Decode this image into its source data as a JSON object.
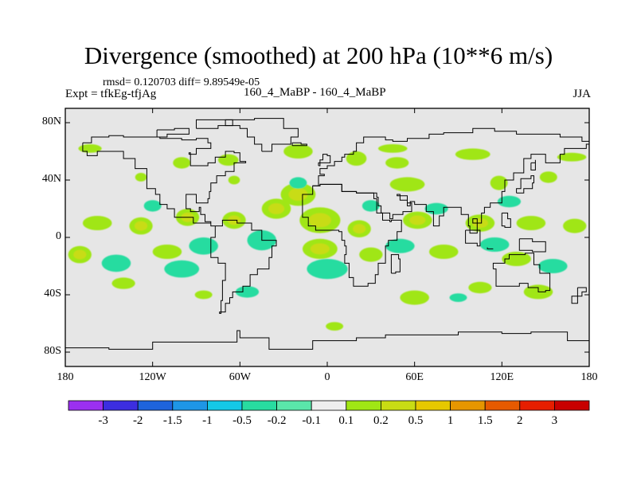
{
  "title": "Divergence (smoothed) at 200 hPa (10**6 m/s)",
  "stats": "rmsd= 0.120703 diff= 9.89549e-05",
  "expt": "Expt = tfkEg-tfjAg",
  "center_label": "160_4_MaBP - 160_4_MaBP",
  "season": "JJA",
  "map": {
    "lat_ticks": [
      "80N",
      "40N",
      "0",
      "40S",
      "80S"
    ],
    "lon_ticks": [
      "180",
      "120W",
      "60W",
      "0",
      "60E",
      "120E",
      "180"
    ],
    "lat_values": [
      80,
      40,
      0,
      -40,
      -80
    ],
    "lon_values": [
      -180,
      -120,
      -60,
      0,
      60,
      120,
      180
    ],
    "lat_range": [
      -90,
      90
    ],
    "lon_range": [
      -180,
      180
    ],
    "background_color": "#e6e6e6"
  },
  "colorbar": {
    "labels": [
      "-3",
      "-2",
      "-1.5",
      "-1",
      "-0.5",
      "-0.2",
      "-0.1",
      "0.1",
      "0.2",
      "0.5",
      "1",
      "1.5",
      "2",
      "3"
    ],
    "colors": [
      "#9b30f0",
      "#3c2ee0",
      "#1e64dc",
      "#1e96e6",
      "#14c8e6",
      "#28dca0",
      "#5ae6aa",
      "#eeeeee",
      "#a0e614",
      "#c8dc14",
      "#e6c800",
      "#e69600",
      "#e65a00",
      "#e61e00",
      "#c80000"
    ]
  },
  "divergence_blobs": [
    {
      "lon": -163,
      "lat": 62,
      "rx": 8,
      "ry": 3,
      "v": 0.3
    },
    {
      "lon": -100,
      "lat": 52,
      "rx": 6,
      "ry": 4,
      "v": 0.3
    },
    {
      "lon": -68,
      "lat": 54,
      "rx": 7,
      "ry": 4,
      "v": 0.3
    },
    {
      "lon": -20,
      "lat": 60,
      "rx": 10,
      "ry": 5,
      "v": 0.3
    },
    {
      "lon": 20,
      "lat": 55,
      "rx": 7,
      "ry": 5,
      "v": 0.3
    },
    {
      "lon": 48,
      "lat": 52,
      "rx": 8,
      "ry": 4,
      "v": 0.3
    },
    {
      "lon": 100,
      "lat": 58,
      "rx": 12,
      "ry": 4,
      "v": 0.3
    },
    {
      "lon": 168,
      "lat": 56,
      "rx": 10,
      "ry": 3,
      "v": 0.3
    },
    {
      "lon": 45,
      "lat": 62,
      "rx": 10,
      "ry": 3,
      "v": 0.3
    },
    {
      "lon": -128,
      "lat": 42,
      "rx": 4,
      "ry": 3,
      "v": 0.3
    },
    {
      "lon": -64,
      "lat": 40,
      "rx": 4,
      "ry": 3,
      "v": 0.3
    },
    {
      "lon": -20,
      "lat": 30,
      "rx": 12,
      "ry": 8,
      "v": 0.6
    },
    {
      "lon": 55,
      "lat": 37,
      "rx": 12,
      "ry": 5,
      "v": 0.3
    },
    {
      "lon": 118,
      "lat": 38,
      "rx": 6,
      "ry": 5,
      "v": 0.3
    },
    {
      "lon": 152,
      "lat": 42,
      "rx": 6,
      "ry": 4,
      "v": 0.3
    },
    {
      "lon": -158,
      "lat": 10,
      "rx": 10,
      "ry": 5,
      "v": 0.3
    },
    {
      "lon": -128,
      "lat": 8,
      "rx": 8,
      "ry": 6,
      "v": 0.6
    },
    {
      "lon": -96,
      "lat": 14,
      "rx": 8,
      "ry": 6,
      "v": 0.6
    },
    {
      "lon": -64,
      "lat": 12,
      "rx": 8,
      "ry": 6,
      "v": 0.6
    },
    {
      "lon": -35,
      "lat": 20,
      "rx": 10,
      "ry": 7,
      "v": 0.6
    },
    {
      "lon": -5,
      "lat": 12,
      "rx": 14,
      "ry": 9,
      "v": 0.6
    },
    {
      "lon": 22,
      "lat": 6,
      "rx": 8,
      "ry": 6,
      "v": 0.6
    },
    {
      "lon": 62,
      "lat": 12,
      "rx": 10,
      "ry": 6,
      "v": 0.6
    },
    {
      "lon": 105,
      "lat": 10,
      "rx": 10,
      "ry": 6,
      "v": 0.6
    },
    {
      "lon": 140,
      "lat": 10,
      "rx": 10,
      "ry": 5,
      "v": 0.3
    },
    {
      "lon": 170,
      "lat": 8,
      "rx": 8,
      "ry": 5,
      "v": 0.3
    },
    {
      "lon": -5,
      "lat": -8,
      "rx": 12,
      "ry": 7,
      "v": 0.6
    },
    {
      "lon": 30,
      "lat": -12,
      "rx": 8,
      "ry": 5,
      "v": 0.3
    },
    {
      "lon": 80,
      "lat": -10,
      "rx": 10,
      "ry": 5,
      "v": 0.3
    },
    {
      "lon": 130,
      "lat": -15,
      "rx": 10,
      "ry": 5,
      "v": 0.3
    },
    {
      "lon": -170,
      "lat": -12,
      "rx": 8,
      "ry": 6,
      "v": 0.6
    },
    {
      "lon": -110,
      "lat": -10,
      "rx": 10,
      "ry": 5,
      "v": 0.3
    },
    {
      "lon": 60,
      "lat": -42,
      "rx": 10,
      "ry": 5,
      "v": 0.3
    },
    {
      "lon": 105,
      "lat": -35,
      "rx": 8,
      "ry": 4,
      "v": 0.3
    },
    {
      "lon": 145,
      "lat": -38,
      "rx": 10,
      "ry": 5,
      "v": 0.3
    },
    {
      "lon": 5,
      "lat": -62,
      "rx": 6,
      "ry": 3,
      "v": 0.3
    },
    {
      "lon": -85,
      "lat": -40,
      "rx": 6,
      "ry": 3,
      "v": 0.3
    },
    {
      "lon": -140,
      "lat": -32,
      "rx": 8,
      "ry": 4,
      "v": 0.3
    },
    {
      "lon": -45,
      "lat": -2,
      "rx": 10,
      "ry": 7,
      "v": -0.3
    },
    {
      "lon": -85,
      "lat": -6,
      "rx": 10,
      "ry": 6,
      "v": -0.3
    },
    {
      "lon": -145,
      "lat": -18,
      "rx": 10,
      "ry": 6,
      "v": -0.3
    },
    {
      "lon": -100,
      "lat": -22,
      "rx": 12,
      "ry": 6,
      "v": -0.3
    },
    {
      "lon": 0,
      "lat": -22,
      "rx": 14,
      "ry": 7,
      "v": -0.3
    },
    {
      "lon": 50,
      "lat": -6,
      "rx": 10,
      "ry": 5,
      "v": -0.3
    },
    {
      "lon": 115,
      "lat": -5,
      "rx": 10,
      "ry": 5,
      "v": -0.3
    },
    {
      "lon": 155,
      "lat": -20,
      "rx": 10,
      "ry": 5,
      "v": -0.3
    },
    {
      "lon": -120,
      "lat": 22,
      "rx": 6,
      "ry": 4,
      "v": -0.3
    },
    {
      "lon": -20,
      "lat": 38,
      "rx": 6,
      "ry": 4,
      "v": -0.3
    },
    {
      "lon": 30,
      "lat": 22,
      "rx": 6,
      "ry": 4,
      "v": -0.3
    },
    {
      "lon": 75,
      "lat": 20,
      "rx": 8,
      "ry": 4,
      "v": -0.3
    },
    {
      "lon": 125,
      "lat": 25,
      "rx": 8,
      "ry": 4,
      "v": -0.3
    },
    {
      "lon": -55,
      "lat": -38,
      "rx": 8,
      "ry": 4,
      "v": -0.3
    },
    {
      "lon": 90,
      "lat": -42,
      "rx": 6,
      "ry": 3,
      "v": -0.3
    }
  ],
  "coastlines": [
    [
      [
        -168,
        66
      ],
      [
        -162,
        70
      ],
      [
        -150,
        71
      ],
      [
        -140,
        70
      ],
      [
        -128,
        70
      ],
      [
        -115,
        69
      ],
      [
        -100,
        68
      ],
      [
        -90,
        69
      ],
      [
        -82,
        66
      ],
      [
        -80,
        62
      ],
      [
        -90,
        58
      ],
      [
        -95,
        59
      ],
      [
        -94,
        50
      ],
      [
        -82,
        52
      ],
      [
        -77,
        56
      ],
      [
        -70,
        60
      ],
      [
        -64,
        59
      ],
      [
        -60,
        53
      ],
      [
        -56,
        52
      ],
      [
        -64,
        46
      ],
      [
        -70,
        43
      ],
      [
        -76,
        38
      ],
      [
        -80,
        32
      ],
      [
        -81,
        27
      ],
      [
        -82,
        24
      ],
      [
        -90,
        30
      ],
      [
        -97,
        27
      ],
      [
        -97,
        20
      ],
      [
        -94,
        18
      ],
      [
        -88,
        21
      ],
      [
        -87,
        16
      ],
      [
        -84,
        11
      ],
      [
        -80,
        8
      ],
      [
        -77,
        8
      ],
      [
        -80,
        10
      ],
      [
        -85,
        10
      ],
      [
        -92,
        14
      ],
      [
        -105,
        20
      ],
      [
        -110,
        23
      ],
      [
        -115,
        30
      ],
      [
        -118,
        34
      ],
      [
        -124,
        40
      ],
      [
        -124,
        48
      ],
      [
        -132,
        55
      ],
      [
        -140,
        60
      ],
      [
        -150,
        60
      ],
      [
        -158,
        57
      ],
      [
        -165,
        60
      ],
      [
        -168,
        66
      ]
    ],
    [
      [
        -77,
        8
      ],
      [
        -72,
        12
      ],
      [
        -62,
        10
      ],
      [
        -52,
        5
      ],
      [
        -45,
        -2
      ],
      [
        -35,
        -6
      ],
      [
        -38,
        -14
      ],
      [
        -40,
        -22
      ],
      [
        -48,
        -26
      ],
      [
        -53,
        -34
      ],
      [
        -58,
        -38
      ],
      [
        -65,
        -42
      ],
      [
        -67,
        -46
      ],
      [
        -70,
        -52
      ],
      [
        -74,
        -53
      ],
      [
        -73,
        -44
      ],
      [
        -72,
        -30
      ],
      [
        -70,
        -18
      ],
      [
        -75,
        -14
      ],
      [
        -80,
        -6
      ],
      [
        -80,
        0
      ],
      [
        -77,
        8
      ]
    ],
    [
      [
        -10,
        36
      ],
      [
        -6,
        43
      ],
      [
        -2,
        44
      ],
      [
        -5,
        48
      ],
      [
        0,
        50
      ],
      [
        5,
        53
      ],
      [
        10,
        56
      ],
      [
        12,
        58
      ],
      [
        18,
        60
      ],
      [
        20,
        66
      ],
      [
        25,
        70
      ],
      [
        40,
        68
      ],
      [
        45,
        67
      ],
      [
        55,
        69
      ],
      [
        70,
        72
      ],
      [
        80,
        73
      ],
      [
        100,
        76
      ],
      [
        115,
        74
      ],
      [
        130,
        72
      ],
      [
        145,
        72
      ],
      [
        160,
        70
      ],
      [
        175,
        67
      ],
      [
        180,
        65
      ],
      [
        178,
        62
      ],
      [
        163,
        58
      ],
      [
        160,
        52
      ],
      [
        150,
        58
      ],
      [
        140,
        55
      ],
      [
        135,
        45
      ],
      [
        128,
        40
      ],
      [
        122,
        38
      ],
      [
        122,
        32
      ],
      [
        120,
        24
      ],
      [
        112,
        21
      ],
      [
        108,
        17
      ],
      [
        106,
        10
      ],
      [
        100,
        13
      ],
      [
        103,
        3
      ],
      [
        98,
        8
      ],
      [
        97,
        16
      ],
      [
        92,
        21
      ],
      [
        87,
        21
      ],
      [
        80,
        15
      ],
      [
        77,
        8
      ],
      [
        73,
        18
      ],
      [
        68,
        23
      ],
      [
        60,
        25
      ],
      [
        57,
        22
      ],
      [
        55,
        26
      ],
      [
        50,
        30
      ],
      [
        48,
        29
      ],
      [
        55,
        24
      ],
      [
        58,
        18
      ],
      [
        52,
        16
      ],
      [
        45,
        13
      ],
      [
        43,
        17
      ],
      [
        37,
        22
      ],
      [
        35,
        28
      ],
      [
        34,
        31
      ],
      [
        30,
        31
      ],
      [
        20,
        32
      ],
      [
        10,
        37
      ],
      [
        -5,
        36
      ],
      [
        -10,
        36
      ]
    ],
    [
      [
        -17,
        21
      ],
      [
        -17,
        14
      ],
      [
        -13,
        8
      ],
      [
        -8,
        5
      ],
      [
        0,
        5
      ],
      [
        8,
        4
      ],
      [
        10,
        -2
      ],
      [
        12,
        -6
      ],
      [
        13,
        -12
      ],
      [
        12,
        -18
      ],
      [
        15,
        -28
      ],
      [
        18,
        -34
      ],
      [
        23,
        -34
      ],
      [
        28,
        -32
      ],
      [
        33,
        -26
      ],
      [
        35,
        -18
      ],
      [
        40,
        -14
      ],
      [
        40,
        -6
      ],
      [
        42,
        -2
      ],
      [
        48,
        4
      ],
      [
        51,
        12
      ],
      [
        44,
        11
      ],
      [
        43,
        12
      ],
      [
        38,
        17
      ],
      [
        34,
        27
      ],
      [
        32,
        31
      ],
      [
        20,
        32
      ],
      [
        10,
        37
      ],
      [
        -5,
        36
      ],
      [
        -10,
        30
      ],
      [
        -17,
        21
      ]
    ],
    [
      [
        114,
        -22
      ],
      [
        116,
        -34
      ],
      [
        123,
        -34
      ],
      [
        132,
        -32
      ],
      [
        138,
        -35
      ],
      [
        145,
        -38
      ],
      [
        150,
        -37
      ],
      [
        153,
        -30
      ],
      [
        153,
        -25
      ],
      [
        146,
        -19
      ],
      [
        142,
        -11
      ],
      [
        136,
        -12
      ],
      [
        130,
        -12
      ],
      [
        125,
        -15
      ],
      [
        122,
        -18
      ],
      [
        114,
        -22
      ]
    ],
    [
      [
        -45,
        60
      ],
      [
        -38,
        65
      ],
      [
        -25,
        70
      ],
      [
        -20,
        76
      ],
      [
        -30,
        83
      ],
      [
        -50,
        82
      ],
      [
        -62,
        82
      ],
      [
        -70,
        78
      ],
      [
        -60,
        76
      ],
      [
        -55,
        70
      ],
      [
        -50,
        65
      ],
      [
        -45,
        60
      ]
    ],
    [
      [
        44,
        -25
      ],
      [
        47,
        -24
      ],
      [
        50,
        -15
      ],
      [
        49,
        -12
      ],
      [
        44,
        -17
      ],
      [
        44,
        -25
      ]
    ],
    [
      [
        -6,
        50
      ],
      [
        -5,
        54
      ],
      [
        -3,
        58
      ],
      [
        0,
        57
      ],
      [
        2,
        52
      ],
      [
        -6,
        50
      ]
    ],
    [
      [
        -24,
        64
      ],
      [
        -14,
        65
      ],
      [
        -18,
        66
      ],
      [
        -24,
        64
      ]
    ],
    [
      [
        130,
        31
      ],
      [
        135,
        34
      ],
      [
        141,
        38
      ],
      [
        142,
        43
      ],
      [
        140,
        41
      ],
      [
        133,
        34
      ],
      [
        130,
        31
      ]
    ],
    [
      [
        95,
        5
      ],
      [
        105,
        -6
      ],
      [
        103,
        -4
      ],
      [
        95,
        5
      ]
    ],
    [
      [
        110,
        -8
      ],
      [
        114,
        -8
      ],
      [
        110,
        -7
      ],
      [
        110,
        -8
      ]
    ],
    [
      [
        132,
        -1
      ],
      [
        141,
        -3
      ],
      [
        150,
        -10
      ],
      [
        141,
        -9
      ],
      [
        132,
        -1
      ]
    ],
    [
      [
        172,
        -35
      ],
      [
        178,
        -38
      ],
      [
        175,
        -41
      ],
      [
        168,
        -46
      ],
      [
        172,
        -35
      ]
    ],
    [
      [
        -180,
        -77
      ],
      [
        -150,
        -78
      ],
      [
        -120,
        -73
      ],
      [
        -90,
        -73
      ],
      [
        -62,
        -65
      ],
      [
        -60,
        -70
      ],
      [
        -40,
        -78
      ],
      [
        -10,
        -72
      ],
      [
        20,
        -70
      ],
      [
        40,
        -68
      ],
      [
        70,
        -68
      ],
      [
        90,
        -66
      ],
      [
        120,
        -67
      ],
      [
        140,
        -66
      ],
      [
        165,
        -72
      ],
      [
        180,
        -77
      ]
    ],
    [
      [
        -117,
        75
      ],
      [
        -105,
        76
      ],
      [
        -95,
        72
      ],
      [
        -110,
        70
      ],
      [
        -117,
        75
      ]
    ],
    [
      [
        -90,
        76
      ],
      [
        -75,
        78
      ],
      [
        -65,
        82
      ],
      [
        -85,
        82
      ],
      [
        -90,
        76
      ]
    ],
    [
      [
        140,
        52
      ],
      [
        143,
        54
      ],
      [
        143,
        47
      ],
      [
        140,
        52
      ]
    ],
    [
      [
        120,
        17
      ],
      [
        124,
        13
      ],
      [
        126,
        7
      ],
      [
        122,
        8
      ],
      [
        120,
        17
      ]
    ]
  ]
}
